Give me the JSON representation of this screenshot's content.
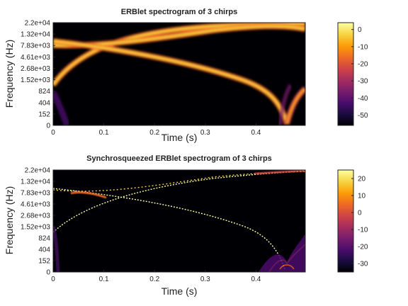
{
  "chart_data": [
    {
      "type": "heatmap",
      "title": "ERBlet spectrogram of 3 chirps",
      "xlabel": "Time (s)",
      "ylabel": "Frequency (Hz)",
      "x_ticks": [
        "0",
        "0.1",
        "0.2",
        "0.3",
        "0.4"
      ],
      "y_ticks": [
        "0",
        "152",
        "404",
        "824",
        "1.52e+03",
        "2.68e+03",
        "4.61e+03",
        "7.83e+03",
        "1.32e+04",
        "2.2e+04"
      ],
      "xlim": [
        0,
        0.5
      ],
      "colorbar": {
        "ticks": [
          "0",
          "-10",
          "-20",
          "-30",
          "-40",
          "-50"
        ],
        "range": [
          -56,
          4
        ],
        "colormap": "inferno"
      },
      "chirps": [
        {
          "description": "rising chirp from low frequency to top",
          "x": [
            0.0,
            0.1,
            0.2,
            0.3,
            0.4,
            0.5
          ],
          "y_hz": [
            900,
            6500,
            11500,
            16000,
            19500,
            20500
          ]
        },
        {
          "description": "falling chirp from ~9 kHz to ~0 Hz then rising",
          "x": [
            0.0,
            0.1,
            0.2,
            0.3,
            0.4,
            0.455,
            0.5
          ],
          "y_hz": [
            9000,
            6500,
            3000,
            1000,
            250,
            40,
            600
          ]
        },
        {
          "description": "slowly rising chirp near top",
          "x": [
            0.0,
            0.1,
            0.2,
            0.3,
            0.4,
            0.5
          ],
          "y_hz": [
            7200,
            8500,
            11000,
            15000,
            19000,
            21000
          ]
        }
      ]
    },
    {
      "type": "heatmap",
      "title": "Synchrosqueezed ERBlet spectrogram of 3 chirps",
      "xlabel": "Time (s)",
      "ylabel": "Frequency (Hz)",
      "x_ticks": [
        "0",
        "0.1",
        "0.2",
        "0.3",
        "0.4"
      ],
      "y_ticks": [
        "0",
        "152",
        "404",
        "824",
        "1.52e+03",
        "2.68e+03",
        "4.61e+03",
        "7.83e+03",
        "1.32e+04",
        "2.2e+04"
      ],
      "xlim": [
        0,
        0.5
      ],
      "colorbar": {
        "ticks": [
          "20",
          "10",
          "0",
          "-10",
          "-20",
          "-30"
        ],
        "range": [
          -35,
          25
        ],
        "colormap": "inferno"
      }
    }
  ],
  "colors": {
    "inferno": [
      "#000004",
      "#1b0c41",
      "#4a0c6b",
      "#781c6d",
      "#a52c60",
      "#cf4446",
      "#ed6925",
      "#fb9b06",
      "#f7d13d",
      "#fcffa4"
    ]
  }
}
